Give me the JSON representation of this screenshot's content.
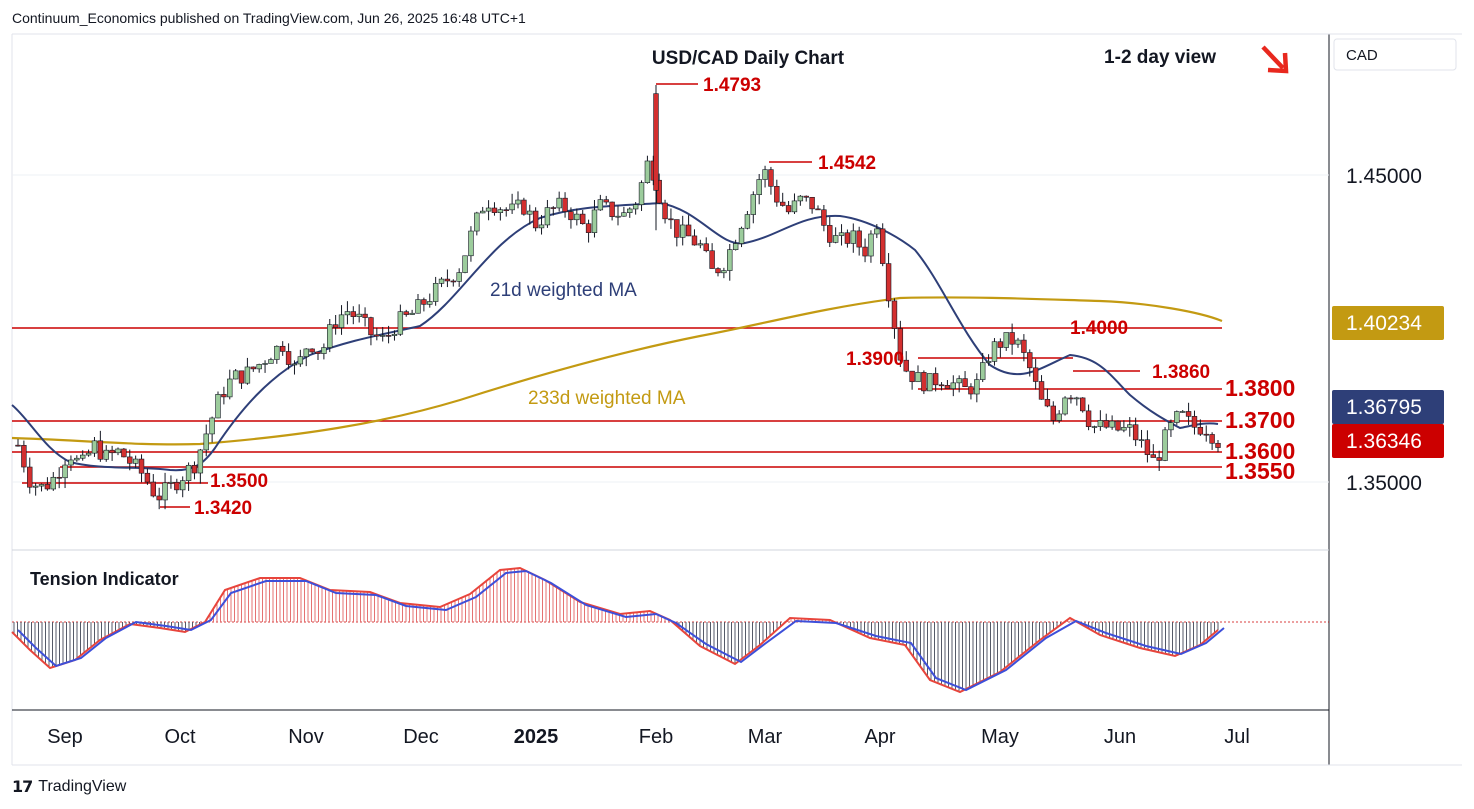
{
  "header": {
    "publisher_text": "Continuum_Economics published on TradingView.com, Jun 26, 2025 16:48 UTC+1"
  },
  "chart_data": {
    "type": "candlestick",
    "title": "USD/CAD Daily Chart",
    "view_label": "1-2 day view",
    "currency_label": "CAD",
    "y_axis_ticks": [
      "1.45000",
      "1.35000"
    ],
    "x_axis_labels": [
      "Sep",
      "Oct",
      "Nov",
      "Dec",
      "2025",
      "Feb",
      "Mar",
      "Apr",
      "May",
      "Jun",
      "Jul"
    ],
    "price_badges": [
      {
        "label": "1.40234",
        "color": "#c39a12"
      },
      {
        "label": "1.36795",
        "color": "#2e3f78"
      },
      {
        "label": "1.36346",
        "color": "#cc0000"
      }
    ],
    "levels_bold": [
      "1.3800",
      "1.3700",
      "1.3600",
      "1.3550"
    ],
    "levels_marked": [
      "1.4793",
      "1.4542",
      "1.4000",
      "1.3900",
      "1.3860",
      "1.3500",
      "1.3420"
    ],
    "moving_averages": [
      {
        "name": "21d weighted MA",
        "color": "#2e3f78"
      },
      {
        "name": "233d weighted MA",
        "color": "#c39a12"
      }
    ],
    "indicator": {
      "name": "Tension Indicator"
    },
    "series_close_approx": [
      1.362,
      1.35,
      1.348,
      1.352,
      1.36,
      1.355,
      1.362,
      1.358,
      1.36,
      1.356,
      1.352,
      1.345,
      1.348,
      1.352,
      1.356,
      1.367,
      1.378,
      1.384,
      1.385,
      1.388,
      1.392,
      1.395,
      1.386,
      1.396,
      1.392,
      1.402,
      1.406,
      1.403,
      1.398,
      1.396,
      1.402,
      1.404,
      1.408,
      1.412,
      1.416,
      1.42,
      1.432,
      1.442,
      1.44,
      1.438,
      1.44,
      1.434,
      1.438,
      1.44,
      1.437,
      1.432,
      1.44,
      1.438,
      1.437,
      1.442,
      1.456,
      1.44,
      1.432,
      1.43,
      1.427,
      1.418,
      1.422,
      1.432,
      1.442,
      1.452,
      1.443,
      1.438,
      1.442,
      1.44,
      1.432,
      1.428,
      1.43,
      1.425,
      1.435,
      1.41,
      1.388,
      1.384,
      1.382,
      1.384,
      1.382,
      1.38,
      1.382,
      1.393,
      1.396,
      1.396,
      1.388,
      1.376,
      1.37,
      1.38,
      1.378,
      1.368,
      1.368,
      1.367,
      1.367,
      1.362,
      1.356,
      1.366,
      1.372,
      1.368,
      1.368,
      1.3635
    ]
  }
}
